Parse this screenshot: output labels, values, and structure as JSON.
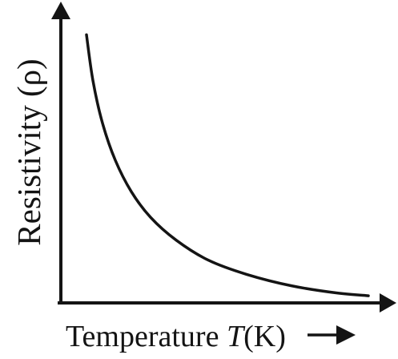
{
  "diagram": {
    "y_axis_label": "Resistivity (ρ)",
    "x_axis_label_main": "Temperature ",
    "x_axis_label_symbol": "T",
    "x_axis_label_unit": "(K)",
    "ink_color": "#141414",
    "background_color": "#ffffff"
  },
  "chart_data": {
    "type": "line",
    "title": "",
    "xlabel": "Temperature T(K)",
    "ylabel": "Resistivity (ρ)",
    "note": "Qualitative curve: resistivity decreasing with increasing temperature; no numeric ticks shown.",
    "xlim": [
      0,
      100
    ],
    "ylim": [
      0,
      100
    ],
    "series": [
      {
        "values_x": [
          8,
          10,
          13,
          17,
          22,
          28,
          36,
          46,
          58,
          72,
          86,
          96
        ],
        "values_y": [
          94,
          78,
          63,
          50,
          39,
          30,
          22,
          15,
          10,
          6,
          3.5,
          2.5
        ]
      }
    ]
  }
}
